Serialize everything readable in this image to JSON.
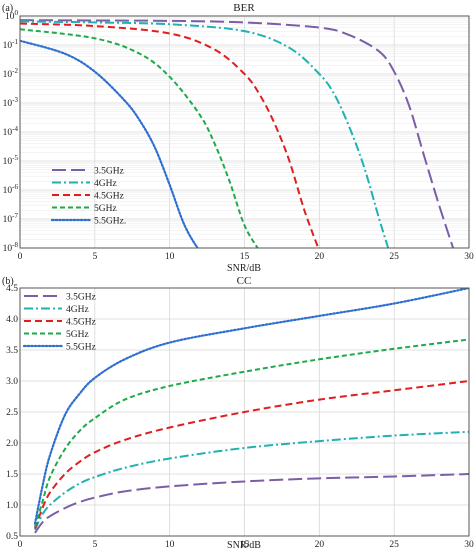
{
  "chart_data": [
    {
      "panel": "(a)",
      "type": "line",
      "title": "BER",
      "xlabel": "SNR/dB",
      "ylabel": "",
      "xlim": [
        0,
        30
      ],
      "ylim_log10": [
        -8,
        0
      ],
      "yscale": "log",
      "grid": true,
      "legend_position": "bottom-left",
      "xticks": [
        "0",
        "5",
        "10",
        "15",
        "20",
        "25",
        "30"
      ],
      "yticks": [
        {
          "base": "10",
          "exp": "0"
        },
        {
          "base": "10",
          "exp": "-1"
        },
        {
          "base": "10",
          "exp": "-2"
        },
        {
          "base": "10",
          "exp": "-3"
        },
        {
          "base": "10",
          "exp": "-4"
        },
        {
          "base": "10",
          "exp": "-5"
        },
        {
          "base": "10",
          "exp": "-6"
        },
        {
          "base": "10",
          "exp": "-7"
        },
        {
          "base": "10",
          "exp": "-8"
        }
      ],
      "series": [
        {
          "name": "3.5GHz",
          "color": "#7b5ea7",
          "dash": "long-dash",
          "x": [
            0,
            5,
            10,
            15,
            20,
            22,
            24,
            25,
            26,
            27,
            28,
            29
          ],
          "y": [
            0.72,
            0.7,
            0.68,
            0.6,
            0.4,
            0.22,
            0.06,
            0.012,
            0.0008,
            1.5e-05,
            3e-07,
            8e-09
          ]
        },
        {
          "name": "4GHz",
          "color": "#20b2b0",
          "dash": "dash-dot",
          "x": [
            0,
            5,
            10,
            15,
            18,
            20,
            21,
            22,
            23,
            24,
            24.6
          ],
          "y": [
            0.65,
            0.6,
            0.52,
            0.3,
            0.08,
            0.01,
            0.002,
            0.00015,
            6e-06,
            1e-07,
            1e-08
          ]
        },
        {
          "name": "4.5GHz",
          "color": "#e01e1e",
          "dash": "dash",
          "x": [
            0,
            5,
            10,
            13,
            15,
            16,
            17,
            18,
            19,
            20
          ],
          "y": [
            0.55,
            0.45,
            0.25,
            0.07,
            0.01,
            0.002,
            0.0002,
            1e-05,
            2e-07,
            8e-09
          ]
        },
        {
          "name": "5GHz",
          "color": "#1faa4a",
          "dash": "short-dash",
          "x": [
            0,
            5,
            8,
            10,
            12,
            13,
            14,
            15,
            16
          ],
          "y": [
            0.35,
            0.17,
            0.05,
            0.008,
            0.0004,
            4e-05,
            2e-06,
            6e-08,
            8e-09
          ]
        },
        {
          "name": "5.5GHz.",
          "color": "#2f6fd0",
          "dash": "dotted",
          "x": [
            0,
            3,
            5,
            7,
            8,
            9,
            10,
            11,
            12,
            12.4
          ],
          "y": [
            0.14,
            0.05,
            0.012,
            0.0012,
            0.00025,
            3e-05,
            1.5e-06,
            6e-08,
            8e-09,
            6e-09
          ]
        }
      ]
    },
    {
      "panel": "(b)",
      "type": "line",
      "title": "CC",
      "xlabel": "SNR/dB",
      "ylabel": "",
      "xlim": [
        0,
        30
      ],
      "ylim": [
        0.5,
        4.5
      ],
      "grid": true,
      "legend_position": "top-left",
      "xticks": [
        "0",
        "5",
        "10",
        "15",
        "20",
        "25",
        "30"
      ],
      "yticks": [
        "0.5",
        "1.0",
        "1.5",
        "2.0",
        "2.5",
        "3.0",
        "3.5",
        "4.0",
        "4.5"
      ],
      "series": [
        {
          "name": "3.5GHz",
          "color": "#7b5ea7",
          "dash": "long-dash",
          "x": [
            1,
            1.5,
            2,
            3,
            4,
            5,
            7,
            10,
            15,
            20,
            25,
            30
          ],
          "y": [
            0.55,
            0.72,
            0.82,
            0.95,
            1.05,
            1.12,
            1.22,
            1.3,
            1.38,
            1.43,
            1.46,
            1.5
          ]
        },
        {
          "name": "4GHz",
          "color": "#20b2b0",
          "dash": "dash-dot",
          "x": [
            1,
            1.5,
            2,
            3,
            4,
            5,
            7,
            10,
            15,
            20,
            25,
            30
          ],
          "y": [
            0.6,
            0.85,
            1.0,
            1.2,
            1.35,
            1.45,
            1.6,
            1.75,
            1.92,
            2.03,
            2.12,
            2.18
          ]
        },
        {
          "name": "4.5GHz",
          "color": "#e01e1e",
          "dash": "dash",
          "x": [
            1,
            1.5,
            2,
            3,
            4,
            5,
            7,
            10,
            15,
            20,
            25,
            30
          ],
          "y": [
            0.62,
            0.95,
            1.2,
            1.5,
            1.7,
            1.85,
            2.05,
            2.25,
            2.5,
            2.7,
            2.85,
            3.0
          ]
        },
        {
          "name": "5GHz",
          "color": "#1faa4a",
          "dash": "short-dash",
          "x": [
            1,
            1.5,
            2,
            3,
            4,
            5,
            7,
            10,
            15,
            20,
            25,
            30
          ],
          "y": [
            0.65,
            1.05,
            1.45,
            1.9,
            2.2,
            2.4,
            2.7,
            2.92,
            3.15,
            3.35,
            3.52,
            3.67
          ]
        },
        {
          "name": "5.5GHz",
          "color": "#2f6fd0",
          "dash": "dotted",
          "x": [
            1,
            1.5,
            2,
            3,
            4,
            5,
            7,
            10,
            15,
            20,
            25,
            30
          ],
          "y": [
            0.7,
            1.3,
            1.8,
            2.45,
            2.8,
            3.05,
            3.35,
            3.62,
            3.85,
            4.05,
            4.25,
            4.5
          ]
        }
      ]
    }
  ]
}
